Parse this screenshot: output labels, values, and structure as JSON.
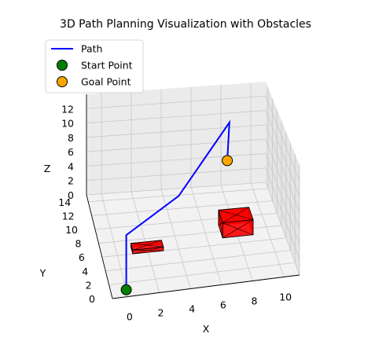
{
  "chart_data": {
    "type": "3d-line",
    "title": "3D Path Planning Visualization with Obstacles",
    "xlabel": "X",
    "ylabel": "Y",
    "zlabel": "Z",
    "xlim": [
      -1,
      11
    ],
    "ylim": [
      0,
      15
    ],
    "zlim": [
      0,
      14
    ],
    "xticks": [
      "0",
      "2",
      "4",
      "6",
      "8",
      "10"
    ],
    "yticks": [
      "0",
      "2",
      "4",
      "6",
      "8",
      "10",
      "12",
      "14"
    ],
    "zticks": [
      "0",
      "2",
      "4",
      "6",
      "8",
      "10",
      "12"
    ],
    "grid": true,
    "legend": {
      "placement": "top-left",
      "entries": [
        {
          "label": "Path",
          "kind": "line",
          "color": "#0000ff"
        },
        {
          "label": "Start Point",
          "kind": "marker",
          "color": "#008000"
        },
        {
          "label": "Goal Point",
          "kind": "marker",
          "color": "#ffa500"
        }
      ]
    },
    "path": {
      "name": "Path",
      "color": "#0000ff",
      "points": [
        {
          "x": 0,
          "y": 1,
          "z": 0
        },
        {
          "x": 0,
          "y": 1,
          "z": 7
        },
        {
          "x": 4,
          "y": 6,
          "z": 7
        },
        {
          "x": 8,
          "y": 11,
          "z": 12
        },
        {
          "x": 8,
          "y": 12,
          "z": 6
        }
      ]
    },
    "start": {
      "name": "Start Point",
      "x": 0,
      "y": 1,
      "z": 0,
      "color": "#008000"
    },
    "goal": {
      "name": "Goal Point",
      "x": 8,
      "y": 12,
      "z": 6,
      "color": "#ffa500"
    },
    "obstacles": [
      {
        "x": [
          1,
          3
        ],
        "y": [
          6,
          7
        ],
        "z": [
          0,
          0.5
        ],
        "color": "#ff0000"
      },
      {
        "x": [
          7,
          9
        ],
        "y": [
          7,
          9
        ],
        "z": [
          0,
          2
        ],
        "color": "#ff0000"
      }
    ]
  }
}
